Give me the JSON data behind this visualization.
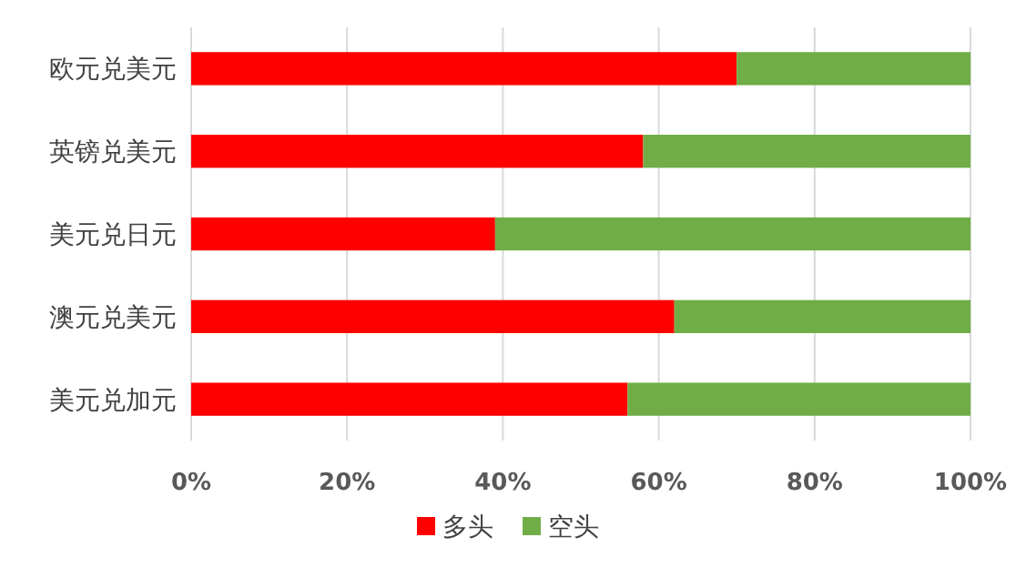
{
  "chart_data": {
    "type": "bar",
    "orientation": "horizontal",
    "stacked": true,
    "categories": [
      "欧元兑美元",
      "英镑兑美元",
      "美元兑日元",
      "澳元兑美元",
      "美元兑加元"
    ],
    "series": [
      {
        "name": "多头",
        "color": "#ff0000",
        "values": [
          70,
          58,
          39,
          62,
          56
        ]
      },
      {
        "name": "空头",
        "color": "#70ad47",
        "values": [
          30,
          42,
          61,
          38,
          44
        ]
      }
    ],
    "xlim": [
      0,
      100
    ],
    "xticks": [
      {
        "value": 0,
        "label": "0%"
      },
      {
        "value": 20,
        "label": "20%"
      },
      {
        "value": 40,
        "label": "40%"
      },
      {
        "value": 60,
        "label": "60%"
      },
      {
        "value": 80,
        "label": "80%"
      },
      {
        "value": 100,
        "label": "100%"
      }
    ],
    "grid": "x",
    "legend": "bottom"
  }
}
